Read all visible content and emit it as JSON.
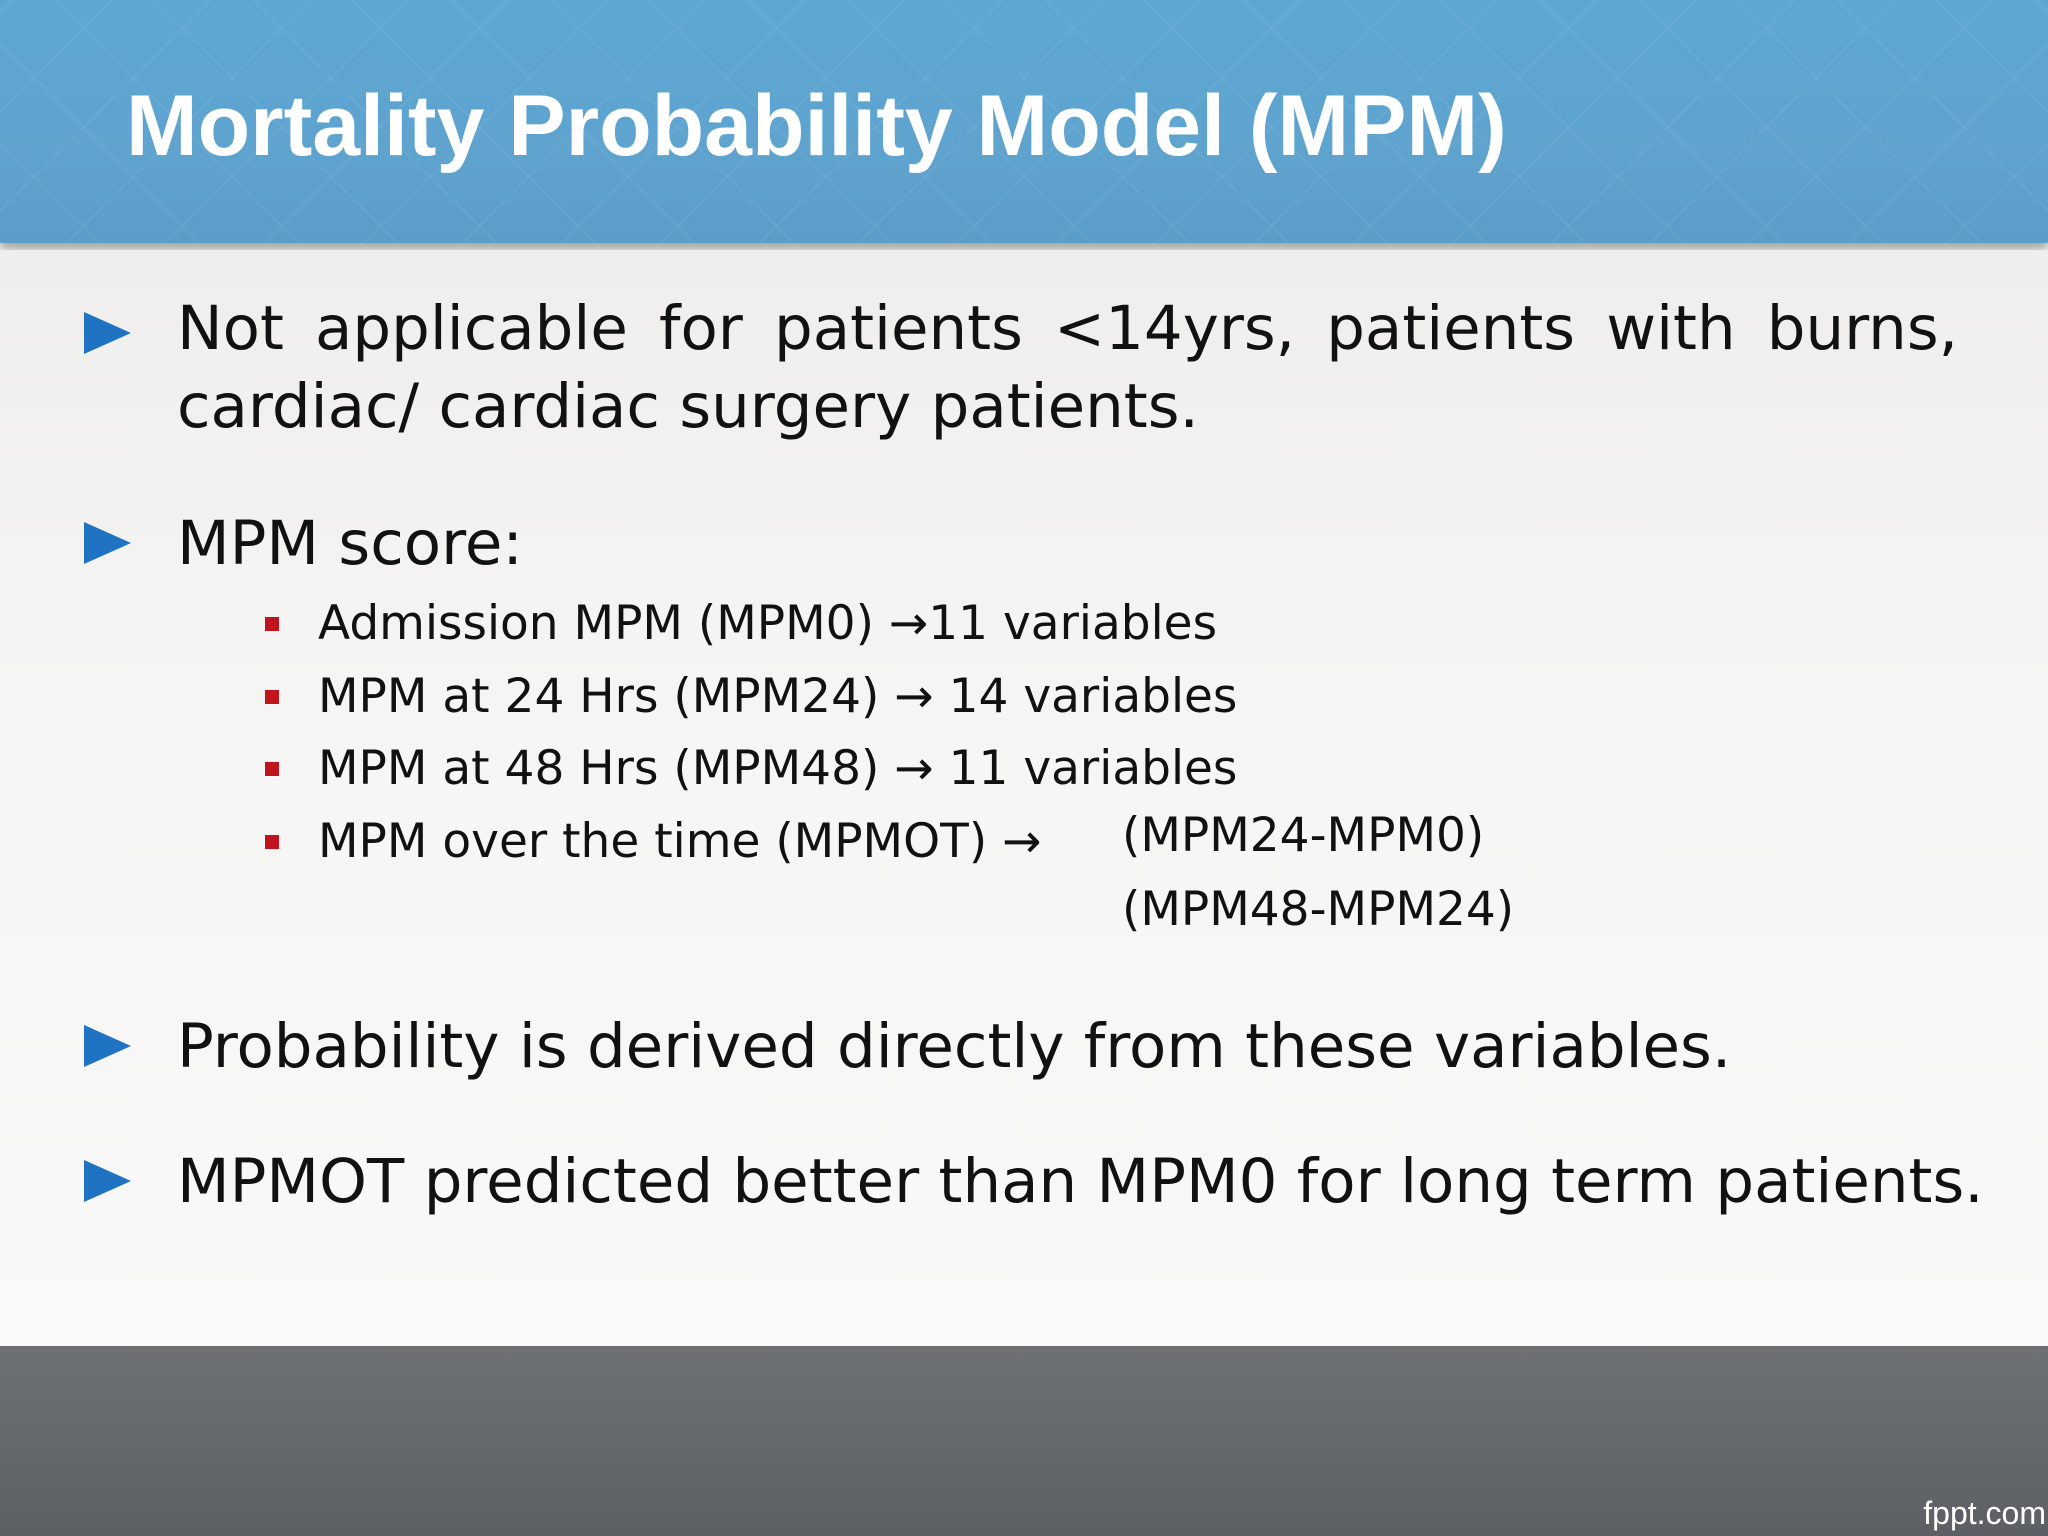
{
  "slide": {
    "title": "Mortality Probability Model (MPM)",
    "bullets": [
      "Not applicable for patients <14yrs, patients with burns, cardiac/ cardiac surgery patients.",
      "MPM score:",
      "Probability is derived directly from these variables.",
      "MPMOT predicted better than MPM0 for long term patients."
    ],
    "sub_bullets": [
      "Admission MPM (MPM0) →11 variables",
      "MPM at 24 Hrs (MPM24) → 14 variables",
      "MPM at 48 Hrs (MPM48) → 11 variables",
      "MPM over the time (MPMOT) →"
    ],
    "mpmot_formulas": [
      "(MPM24-MPM0)",
      "(MPM48-MPM24)"
    ]
  },
  "footer": {
    "brand": "fppt.com"
  },
  "colors": {
    "header_blue": "#5da8d3",
    "bullet_blue": "#1f73c2",
    "sub_bullet_red": "#c0141c",
    "footer_gray": "#62666a"
  },
  "icons": {
    "bullet": "triangle-right-icon",
    "sub_bullet": "square-icon"
  }
}
